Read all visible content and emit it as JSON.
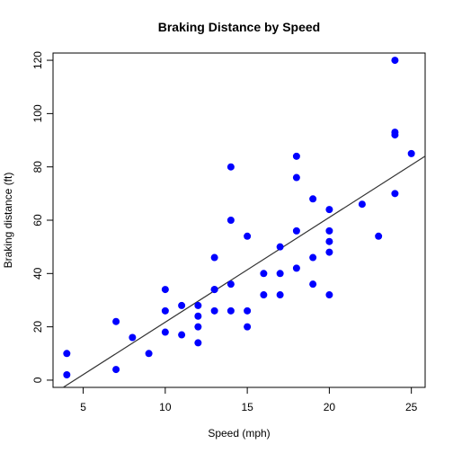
{
  "chart_data": {
    "type": "scatter",
    "title": "Braking Distance by Speed",
    "xlabel": "Speed (mph)",
    "ylabel": "Braking distance (ft)",
    "xlim": [
      3.16,
      25.84
    ],
    "ylim": [
      -2.72,
      122.72
    ],
    "xticks": [
      5,
      10,
      15,
      20,
      25
    ],
    "yticks": [
      0,
      20,
      40,
      60,
      80,
      100,
      120
    ],
    "grid": false,
    "legend": "none",
    "point_color": "#0000ff",
    "line_color": "#333333",
    "series": [
      {
        "x": [
          4,
          4,
          7,
          7,
          8,
          9,
          10,
          10,
          10,
          11,
          11,
          12,
          12,
          12,
          12,
          13,
          13,
          13,
          13,
          14,
          14,
          14,
          14,
          15,
          15,
          15,
          16,
          16,
          17,
          17,
          17,
          18,
          18,
          18,
          18,
          19,
          19,
          19,
          20,
          20,
          20,
          20,
          20,
          22,
          23,
          24,
          24,
          24,
          24,
          25
        ],
        "y": [
          2,
          10,
          4,
          22,
          16,
          10,
          18,
          26,
          34,
          17,
          28,
          14,
          20,
          24,
          28,
          26,
          34,
          34,
          46,
          26,
          36,
          60,
          80,
          20,
          26,
          54,
          32,
          40,
          32,
          40,
          50,
          42,
          56,
          76,
          84,
          36,
          46,
          68,
          32,
          48,
          52,
          56,
          64,
          66,
          54,
          70,
          92,
          93,
          120,
          85
        ]
      }
    ],
    "regression_line": {
      "intercept": -17.579,
      "slope": 3.932
    }
  }
}
